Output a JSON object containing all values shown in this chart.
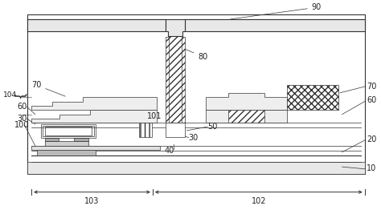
{
  "fig_width": 4.74,
  "fig_height": 2.72,
  "bg_color": "#ffffff",
  "line_color": "#333333",
  "line_width": 0.8,
  "thin_line": 0.5,
  "fs": 7
}
